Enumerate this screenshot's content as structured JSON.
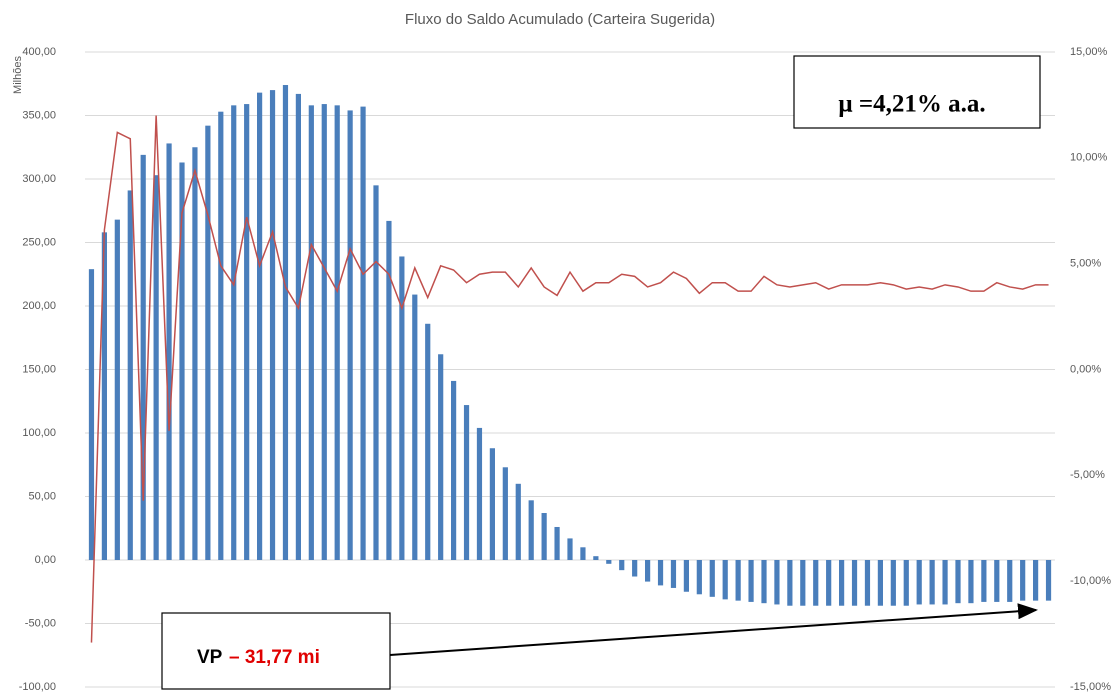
{
  "chart_data": {
    "type": "bar-line",
    "title": "Fluxo do Saldo Acumulado (Carteira Sugerida)",
    "ylabel": "Milhões",
    "ylim": [
      -100,
      400
    ],
    "yticks": [
      {
        "value": -100,
        "label": "-100,00"
      },
      {
        "value": -50,
        "label": "-50,00"
      },
      {
        "value": 0,
        "label": "0,00"
      },
      {
        "value": 50,
        "label": "50,00"
      },
      {
        "value": 100,
        "label": "100,00"
      },
      {
        "value": 150,
        "label": "150,00"
      },
      {
        "value": 200,
        "label": "200,00"
      },
      {
        "value": 250,
        "label": "250,00"
      },
      {
        "value": 300,
        "label": "300,00"
      },
      {
        "value": 350,
        "label": "350,00"
      },
      {
        "value": 400,
        "label": "400,00"
      }
    ],
    "y2lim": [
      -15,
      15
    ],
    "y2ticks": [
      {
        "value": -15,
        "label": "-15,00%"
      },
      {
        "value": -10,
        "label": "-10,00%"
      },
      {
        "value": -5,
        "label": "-5,00%"
      },
      {
        "value": 0,
        "label": "0,00%"
      },
      {
        "value": 5,
        "label": "5,00%"
      },
      {
        "value": 10,
        "label": "10,00%"
      },
      {
        "value": 15,
        "label": "15,00%"
      }
    ],
    "grid": true,
    "series": [
      {
        "type": "bar",
        "color": "#4a7ebb",
        "values": [
          229,
          258,
          268,
          291,
          319,
          303,
          328,
          313,
          325,
          342,
          353,
          358,
          359,
          368,
          370,
          374,
          367,
          358,
          359,
          358,
          354,
          357,
          295,
          267,
          239,
          209,
          186,
          162,
          141,
          122,
          104,
          88,
          73,
          60,
          47,
          37,
          26,
          17,
          10,
          3,
          -3,
          -8,
          -13,
          -17,
          -20,
          -22,
          -25,
          -27,
          -29,
          -31,
          -32,
          -33,
          -34,
          -35,
          -36,
          -36,
          -36,
          -36,
          -36,
          -36,
          -36,
          -36,
          -36,
          -36,
          -35,
          -35,
          -35,
          -34,
          -34,
          -33,
          -33,
          -33,
          -32,
          -32,
          -32
        ]
      },
      {
        "type": "line",
        "axis": "y2",
        "color": "#c0504d",
        "values": [
          -12.9,
          6.6,
          11.2,
          10.9,
          -6.2,
          12.0,
          -2.9,
          7.4,
          9.4,
          7.3,
          4.9,
          4.0,
          7.2,
          4.9,
          6.5,
          3.9,
          2.9,
          5.9,
          4.8,
          3.7,
          5.7,
          4.5,
          5.1,
          4.5,
          2.9,
          4.8,
          3.4,
          4.9,
          4.7,
          4.1,
          4.5,
          4.6,
          4.6,
          3.9,
          4.8,
          3.9,
          3.5,
          4.6,
          3.7,
          4.1,
          4.1,
          4.5,
          4.4,
          3.9,
          4.1,
          4.6,
          4.3,
          3.6,
          4.1,
          4.1,
          3.7,
          3.7,
          4.4,
          4.0,
          3.9,
          4.0,
          4.1,
          3.8,
          4.0,
          4.0,
          4.0,
          4.1,
          4.0,
          3.8,
          3.9,
          3.8,
          4.0,
          3.9,
          3.7,
          3.7,
          4.1,
          3.9,
          3.8,
          4.0,
          4.0
        ]
      }
    ],
    "annotations": [
      "μ =4,21% a.a.",
      "VP",
      "– 31,77 mi"
    ]
  }
}
